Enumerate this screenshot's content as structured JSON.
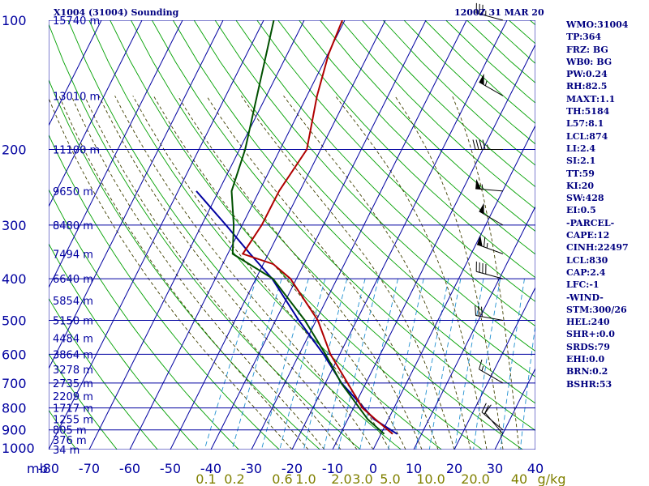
{
  "header": {
    "station": "X1004 (31004) Sounding",
    "time": "1200Z 31 MAR 20"
  },
  "stats": [
    "WMO:31004",
    "TP:364",
    "FRZ: BG",
    "WB0: BG",
    "PW:0.24",
    "RH:82.5",
    "MAXT:1.1",
    "TH:5184",
    "L57:8.1",
    "LCL:874",
    "LI:2.4",
    "SI:2.1",
    "TT:59",
    "KI:20",
    "SW:428",
    "EI:0.5",
    "-PARCEL-",
    "CAPE:12",
    "CINH:22497",
    "LCL:830",
    "CAP:2.4",
    "LFC:-1",
    "-WIND-",
    "STM:300/26",
    "HEL:240",
    "SHR+:0.0",
    "SRDS:79",
    "EHI:0.0",
    "BRN:0.2",
    "BSHR:53"
  ],
  "colors": {
    "grid": "#0000a0",
    "dry_adiabat": "#00a000",
    "moist_adiabat": "#404000",
    "mixing_ratio": "#2090d0",
    "temperature": "#b00000",
    "dewpoint": "#005000",
    "parcel": "#0000a0",
    "labels": "#0000a0",
    "mixing_labels": "#808000",
    "wind_barb": "#000000"
  },
  "chart_data": {
    "type": "skew-t",
    "pressure_axis_unit": "mb",
    "mixing_ratio_unit": "g/kg",
    "pressure_levels": [
      100,
      200,
      300,
      400,
      500,
      600,
      700,
      800,
      900,
      1000
    ],
    "temperature_ticks": [
      -80,
      -70,
      -60,
      -50,
      -40,
      -30,
      -20,
      -10,
      0,
      10,
      20,
      30,
      40
    ],
    "mixing_ratio_labels": [
      "0.1",
      "0.2",
      "0.6",
      "1.0",
      "2.0",
      "3.0",
      "5.0",
      "10.0",
      "20.0",
      "40"
    ],
    "height_labels": [
      {
        "p": 100,
        "label": "15740 m"
      },
      {
        "p": 150,
        "label": "13010 m"
      },
      {
        "p": 200,
        "label": "11100 m"
      },
      {
        "p": 250,
        "label": "9650 m"
      },
      {
        "p": 300,
        "label": "8480 m"
      },
      {
        "p": 350,
        "label": "7494 m"
      },
      {
        "p": 400,
        "label": "6640 m"
      },
      {
        "p": 450,
        "label": "5854 m"
      },
      {
        "p": 500,
        "label": "5150 m"
      },
      {
        "p": 550,
        "label": "4484 m"
      },
      {
        "p": 600,
        "label": "3864 m"
      },
      {
        "p": 650,
        "label": "3278 m"
      },
      {
        "p": 700,
        "label": "2735 m"
      },
      {
        "p": 750,
        "label": "2209 m"
      },
      {
        "p": 800,
        "label": "1717 m"
      },
      {
        "p": 850,
        "label": "1255 m"
      },
      {
        "p": 900,
        "label": "805 m"
      },
      {
        "p": 950,
        "label": "376 m"
      },
      {
        "p": 1000,
        "label": "34 m"
      }
    ],
    "temperature_profile": [
      {
        "p": 920,
        "t": 2.9
      },
      {
        "p": 900,
        "t": 1.2
      },
      {
        "p": 850,
        "t": -3.2
      },
      {
        "p": 800,
        "t": -7.8
      },
      {
        "p": 700,
        "t": -14.5
      },
      {
        "p": 600,
        "t": -22.3
      },
      {
        "p": 500,
        "t": -29.6
      },
      {
        "p": 400,
        "t": -41.5
      },
      {
        "p": 370,
        "t": -47.5
      },
      {
        "p": 350,
        "t": -56.3
      },
      {
        "p": 300,
        "t": -55.2
      },
      {
        "p": 250,
        "t": -55.1
      },
      {
        "p": 200,
        "t": -53.4
      },
      {
        "p": 150,
        "t": -57.5
      },
      {
        "p": 120,
        "t": -59.8
      },
      {
        "p": 100,
        "t": -60.6
      }
    ],
    "dewpoint_profile": [
      {
        "p": 920,
        "t": 0.8
      },
      {
        "p": 850,
        "t": -5.1
      },
      {
        "p": 700,
        "t": -16.1
      },
      {
        "p": 600,
        "t": -23.5
      },
      {
        "p": 500,
        "t": -32.8
      },
      {
        "p": 400,
        "t": -45.8
      },
      {
        "p": 350,
        "t": -58.8
      },
      {
        "p": 300,
        "t": -62.1
      },
      {
        "p": 250,
        "t": -66.8
      },
      {
        "p": 200,
        "t": -68.6
      },
      {
        "p": 150,
        "t": -72.3
      },
      {
        "p": 100,
        "t": -77.5
      }
    ],
    "parcel_profile": [
      {
        "p": 920,
        "t": 4.0
      },
      {
        "p": 850,
        "t": -3.5
      },
      {
        "p": 700,
        "t": -16.0
      },
      {
        "p": 600,
        "t": -24.0
      },
      {
        "p": 500,
        "t": -34.3
      },
      {
        "p": 400,
        "t": -46.0
      },
      {
        "p": 350,
        "t": -54.5
      },
      {
        "p": 300,
        "t": -64.0
      },
      {
        "p": 250,
        "t": -75.5
      }
    ],
    "wind_barbs": [
      {
        "p": 100,
        "dir": 285,
        "speed": 35
      },
      {
        "p": 150,
        "dir": 300,
        "speed": 55
      },
      {
        "p": 200,
        "dir": 270,
        "speed": 45
      },
      {
        "p": 250,
        "dir": 275,
        "speed": 55
      },
      {
        "p": 300,
        "dir": 300,
        "speed": 50
      },
      {
        "p": 350,
        "dir": 290,
        "speed": 65
      },
      {
        "p": 400,
        "dir": 285,
        "speed": 40
      },
      {
        "p": 500,
        "dir": 280,
        "speed": 30
      },
      {
        "p": 700,
        "dir": 300,
        "speed": 15
      },
      {
        "p": 900,
        "dir": 310,
        "speed": 20
      },
      {
        "p": 920,
        "dir": 320,
        "speed": 10
      }
    ]
  }
}
